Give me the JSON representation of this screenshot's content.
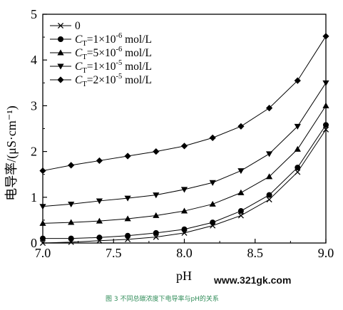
{
  "chart_data": {
    "type": "line",
    "xlabel": "pH",
    "ylabel": "电导率/(μS·cm⁻¹)",
    "xlim": [
      7.0,
      9.0
    ],
    "ylim": [
      0,
      5
    ],
    "x_ticks": [
      "7.0",
      "7.5",
      "8.0",
      "8.5",
      "9.0"
    ],
    "y_ticks": [
      "0",
      "1",
      "2",
      "3",
      "4",
      "5"
    ],
    "x": [
      7.0,
      7.2,
      7.4,
      7.6,
      7.8,
      8.0,
      8.2,
      8.4,
      8.6,
      8.8,
      9.0
    ],
    "legend_position": "top-left",
    "series": [
      {
        "name": "0",
        "marker": "cross",
        "values": [
          0.0,
          0.02,
          0.05,
          0.08,
          0.13,
          0.22,
          0.38,
          0.6,
          0.95,
          1.55,
          2.48
        ]
      },
      {
        "name": "C_T=1×10^-6 mol/L",
        "marker": "circle",
        "values": [
          0.1,
          0.1,
          0.12,
          0.16,
          0.22,
          0.3,
          0.45,
          0.7,
          1.05,
          1.65,
          2.58
        ]
      },
      {
        "name": "C_T=5×10^-6 mol/L",
        "marker": "triangle-up",
        "values": [
          0.43,
          0.45,
          0.48,
          0.53,
          0.6,
          0.7,
          0.85,
          1.1,
          1.45,
          2.05,
          3.0
        ]
      },
      {
        "name": "C_T=1×10^-5 mol/L",
        "marker": "triangle-down",
        "values": [
          0.8,
          0.85,
          0.92,
          0.98,
          1.05,
          1.17,
          1.32,
          1.58,
          1.95,
          2.55,
          3.5
        ]
      },
      {
        "name": "C_T=2×10^-5 mol/L",
        "marker": "diamond",
        "values": [
          1.58,
          1.7,
          1.8,
          1.9,
          2.0,
          2.12,
          2.3,
          2.55,
          2.95,
          3.55,
          4.52
        ]
      }
    ]
  },
  "legend": {
    "items": [
      {
        "prefix": "0",
        "sub": "",
        "mid": "",
        "exp": "",
        "suffix": ""
      },
      {
        "prefix": "C",
        "sub": "T",
        "mid": "=1×10",
        "exp": "-6",
        "suffix": " mol/L"
      },
      {
        "prefix": "C",
        "sub": "T",
        "mid": "=5×10",
        "exp": "-6",
        "suffix": " mol/L"
      },
      {
        "prefix": "C",
        "sub": "T",
        "mid": "=1×10",
        "exp": "-5",
        "suffix": " mol/L"
      },
      {
        "prefix": "C",
        "sub": "T",
        "mid": "=2×10",
        "exp": "-5",
        "suffix": " mol/L"
      }
    ]
  },
  "watermark": "www.321gk.com",
  "caption": "图 3 不同总碳浓度下电导率与pH的关系"
}
